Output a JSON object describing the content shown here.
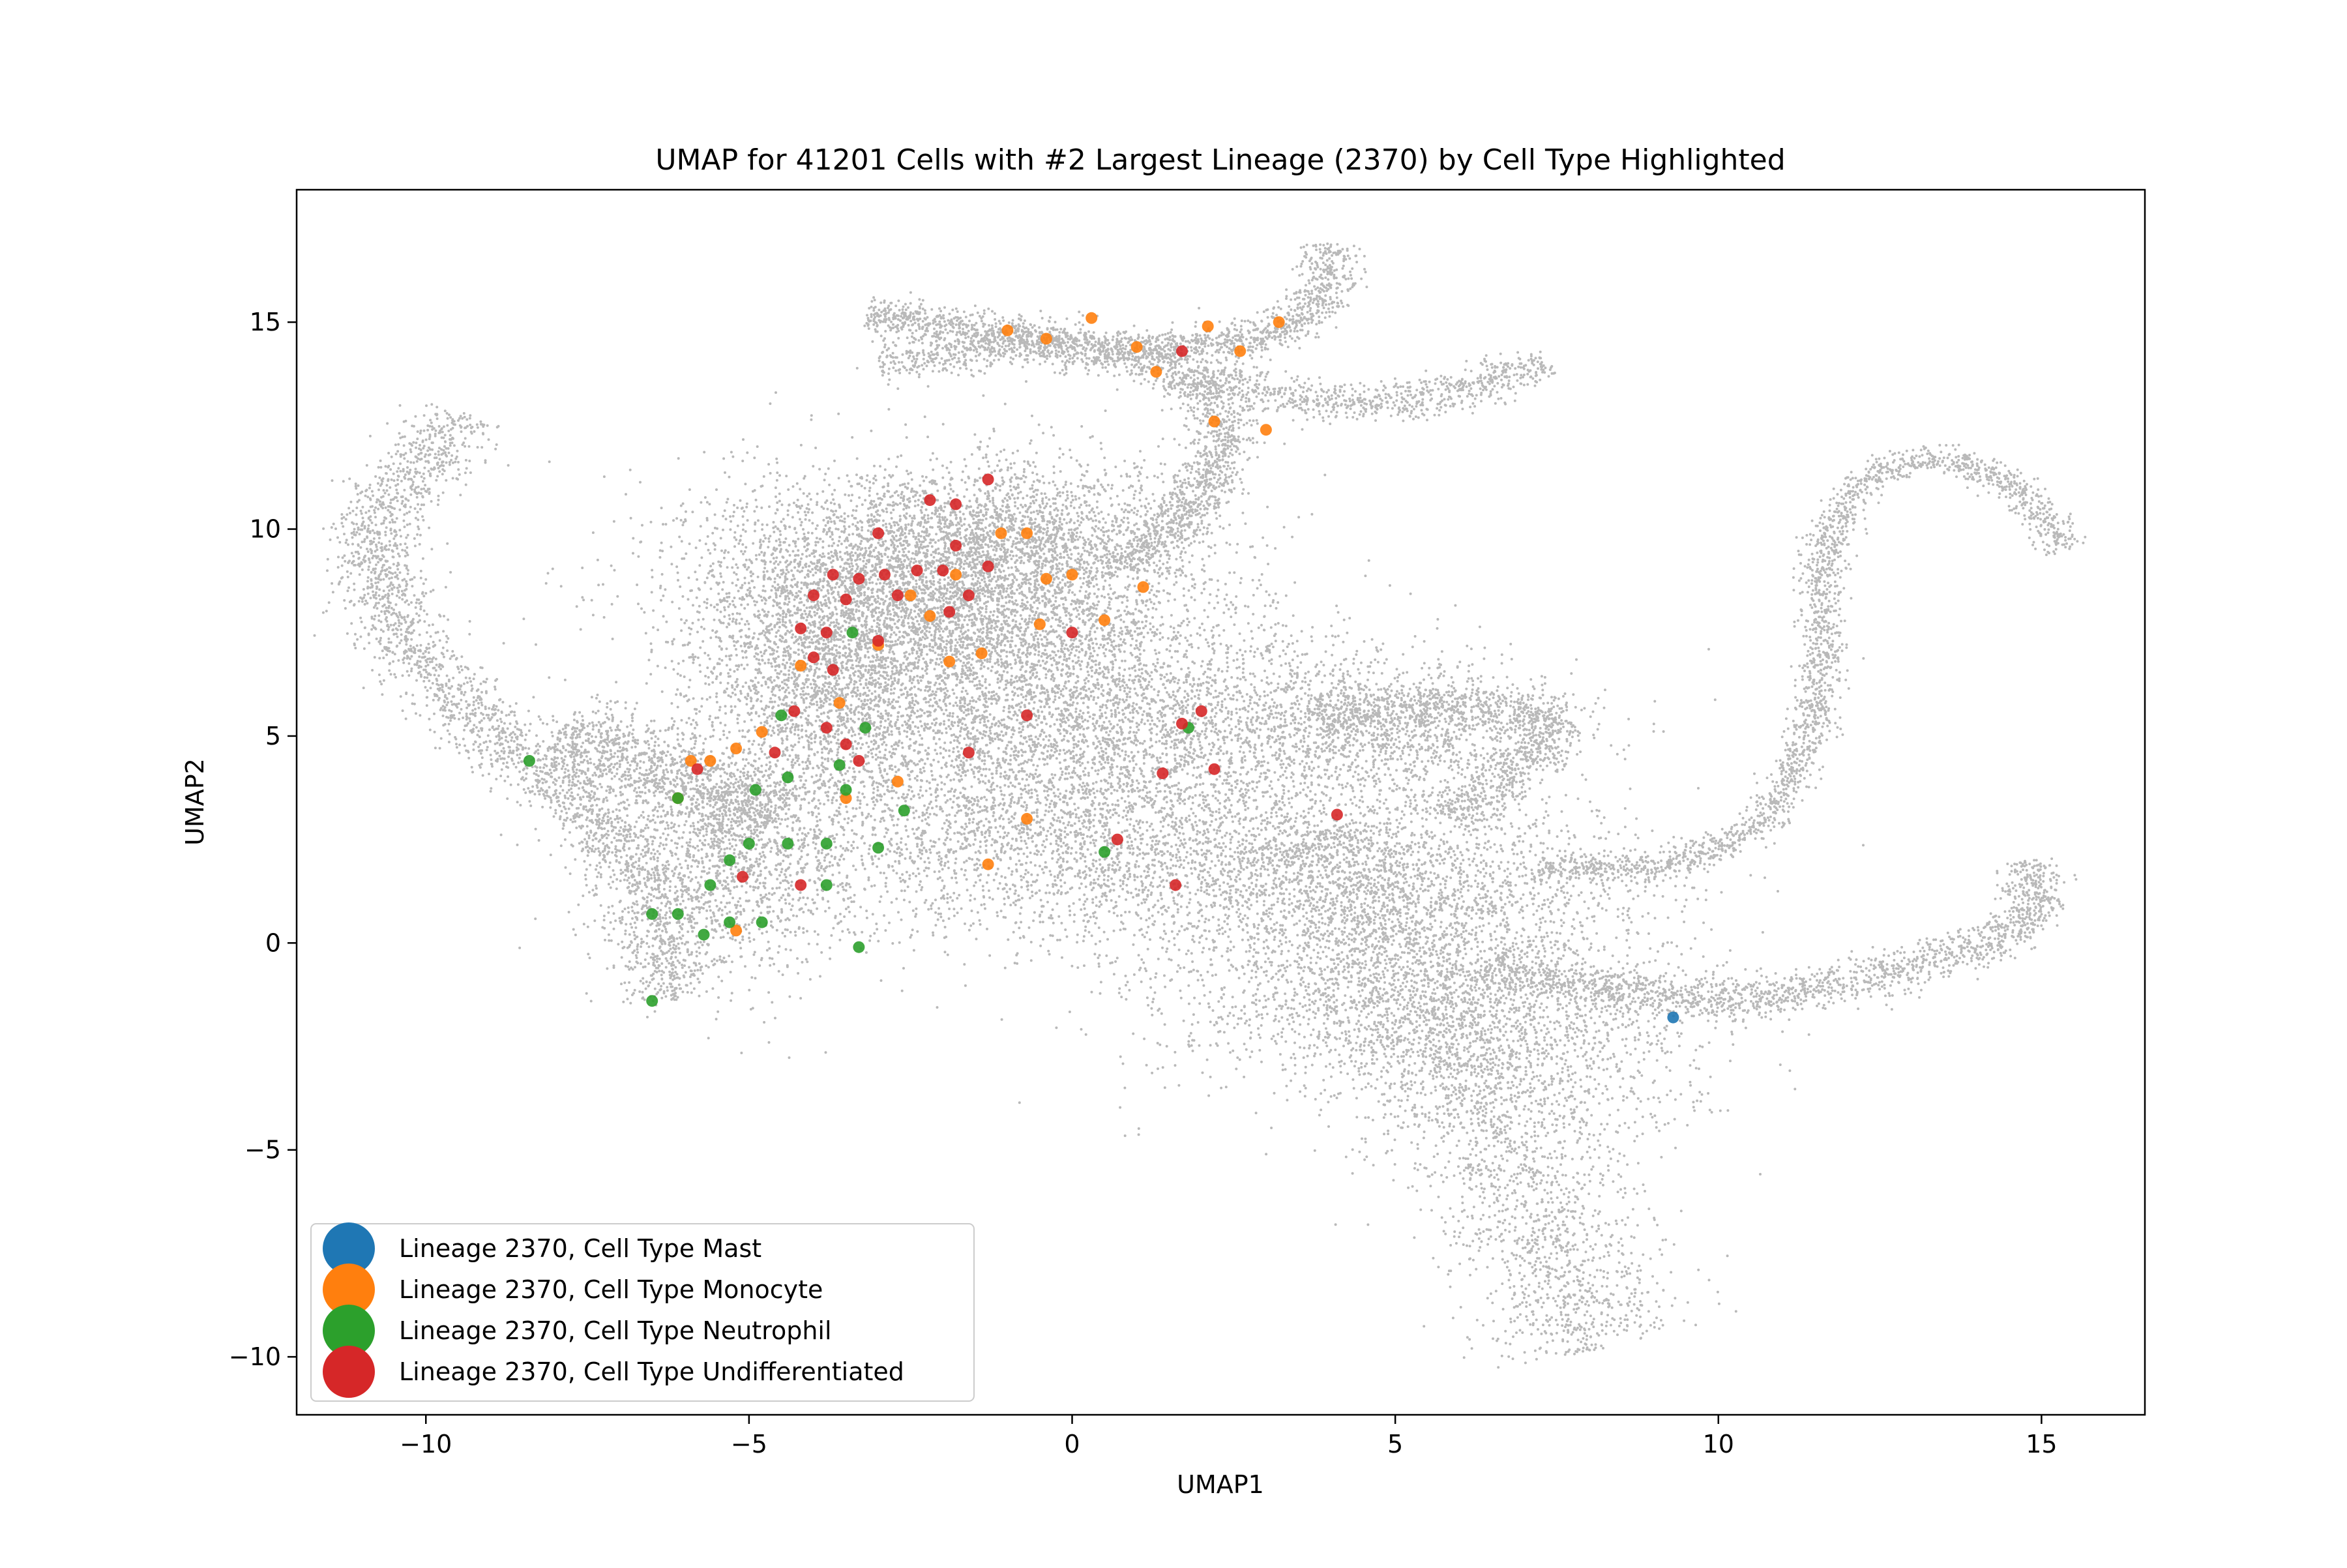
{
  "chart_data": {
    "type": "scatter",
    "title": "UMAP for 41201 Cells with #2 Largest Lineage (2370) by Cell Type Highlighted",
    "xlabel": "UMAP1",
    "ylabel": "UMAP2",
    "xlim": [
      -12,
      16.6
    ],
    "ylim": [
      -11.4,
      18.2
    ],
    "xticks": [
      -10,
      -5,
      0,
      5,
      10,
      15
    ],
    "xtick_labels": [
      "−10",
      "−5",
      "0",
      "5",
      "10",
      "15"
    ],
    "yticks": [
      -10,
      -5,
      0,
      5,
      10,
      15
    ],
    "ytick_labels": [
      "−10",
      "−5",
      "0",
      "5",
      "10",
      "15"
    ],
    "grid": false,
    "legend_position": "lower-left",
    "background_color": "#808080",
    "series": [
      {
        "name": "Lineage 2370, Cell Type Mast",
        "color": "#1f77b4",
        "points": [
          [
            9.3,
            -1.8
          ]
        ]
      },
      {
        "name": "Lineage 2370, Cell Type Monocyte",
        "color": "#ff7f0e",
        "points": [
          [
            -1.0,
            14.8
          ],
          [
            0.3,
            15.1
          ],
          [
            1.0,
            14.4
          ],
          [
            2.1,
            14.9
          ],
          [
            3.2,
            15.0
          ],
          [
            2.6,
            14.3
          ],
          [
            1.3,
            13.8
          ],
          [
            -0.4,
            14.6
          ],
          [
            2.2,
            12.6
          ],
          [
            3.0,
            12.4
          ],
          [
            -1.1,
            9.9
          ],
          [
            -0.7,
            9.9
          ],
          [
            -0.4,
            8.8
          ],
          [
            0.0,
            8.9
          ],
          [
            1.1,
            8.6
          ],
          [
            -0.5,
            7.7
          ],
          [
            -1.4,
            7.0
          ],
          [
            -1.9,
            6.8
          ],
          [
            -3.6,
            5.8
          ],
          [
            -4.2,
            6.7
          ],
          [
            -4.8,
            5.1
          ],
          [
            -5.2,
            4.7
          ],
          [
            -5.6,
            4.4
          ],
          [
            -5.9,
            4.4
          ],
          [
            -6.1,
            3.5
          ],
          [
            -2.7,
            3.9
          ],
          [
            -3.5,
            3.5
          ],
          [
            -0.7,
            3.0
          ],
          [
            -1.3,
            1.9
          ],
          [
            -5.2,
            0.3
          ],
          [
            -2.5,
            8.4
          ],
          [
            -1.8,
            8.9
          ],
          [
            -3.0,
            7.2
          ],
          [
            0.5,
            7.8
          ],
          [
            -2.2,
            7.9
          ]
        ]
      },
      {
        "name": "Lineage 2370, Cell Type Neutrophil",
        "color": "#2ca02c",
        "points": [
          [
            -8.4,
            4.4
          ],
          [
            -6.1,
            3.5
          ],
          [
            -4.9,
            3.7
          ],
          [
            -4.4,
            4.0
          ],
          [
            -3.6,
            4.3
          ],
          [
            -3.5,
            3.7
          ],
          [
            -2.6,
            3.2
          ],
          [
            -4.5,
            5.5
          ],
          [
            -3.2,
            5.2
          ],
          [
            -3.4,
            7.5
          ],
          [
            -5.3,
            2.0
          ],
          [
            -5.0,
            2.4
          ],
          [
            -4.4,
            2.4
          ],
          [
            -3.8,
            2.4
          ],
          [
            -3.0,
            2.3
          ],
          [
            -5.6,
            1.4
          ],
          [
            -3.8,
            1.4
          ],
          [
            -6.5,
            0.7
          ],
          [
            -6.1,
            0.7
          ],
          [
            -5.3,
            0.5
          ],
          [
            -4.8,
            0.5
          ],
          [
            -3.3,
            -0.1
          ],
          [
            -6.5,
            -1.4
          ],
          [
            0.5,
            2.2
          ],
          [
            1.8,
            5.2
          ],
          [
            -5.7,
            0.2
          ]
        ]
      },
      {
        "name": "Lineage 2370, Cell Type Undifferentiated",
        "color": "#d62728",
        "points": [
          [
            1.7,
            14.3
          ],
          [
            -2.2,
            10.7
          ],
          [
            -1.8,
            10.6
          ],
          [
            -1.3,
            11.2
          ],
          [
            -3.0,
            9.9
          ],
          [
            -1.8,
            9.6
          ],
          [
            -1.3,
            9.1
          ],
          [
            -2.4,
            9.0
          ],
          [
            -3.7,
            8.9
          ],
          [
            -3.3,
            8.8
          ],
          [
            -2.9,
            8.9
          ],
          [
            -2.0,
            9.0
          ],
          [
            -4.0,
            8.4
          ],
          [
            -3.5,
            8.3
          ],
          [
            -2.7,
            8.4
          ],
          [
            -1.9,
            8.0
          ],
          [
            -4.2,
            7.6
          ],
          [
            -3.8,
            7.5
          ],
          [
            -3.0,
            7.3
          ],
          [
            -4.0,
            6.9
          ],
          [
            -3.7,
            6.6
          ],
          [
            0.0,
            7.5
          ],
          [
            -4.3,
            5.6
          ],
          [
            -3.8,
            5.2
          ],
          [
            -3.5,
            4.8
          ],
          [
            -4.6,
            4.6
          ],
          [
            -3.3,
            4.4
          ],
          [
            -5.8,
            4.2
          ],
          [
            -0.7,
            5.5
          ],
          [
            1.7,
            5.3
          ],
          [
            2.0,
            5.6
          ],
          [
            1.4,
            4.1
          ],
          [
            2.2,
            4.2
          ],
          [
            -1.6,
            4.6
          ],
          [
            4.1,
            3.1
          ],
          [
            0.7,
            2.5
          ],
          [
            1.6,
            1.4
          ],
          [
            -5.1,
            1.6
          ],
          [
            -4.2,
            1.4
          ],
          [
            -1.6,
            8.4
          ]
        ]
      }
    ]
  }
}
